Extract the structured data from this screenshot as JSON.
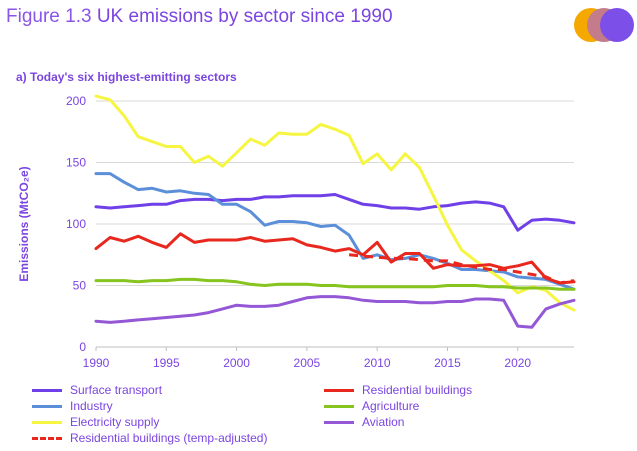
{
  "figure": {
    "label": "Figure 1.3",
    "title": "UK emissions by sector since 1990",
    "logo_colors": [
      "#f5a800",
      "#c47b8a",
      "#7b4fe8"
    ]
  },
  "panel": {
    "subtitle": "a) Today's six highest-emitting sectors"
  },
  "chart_data": {
    "type": "line",
    "title": "a) Today's six highest-emitting sectors",
    "xlabel": "",
    "ylabel": "Emissions (MtCO₂e)",
    "xlim": [
      1990,
      2024
    ],
    "ylim": [
      0,
      200
    ],
    "xticks": [
      1990,
      1995,
      2000,
      2005,
      2010,
      2015,
      2020
    ],
    "yticks": [
      0,
      50,
      100,
      150,
      200
    ],
    "grid": "horizontal",
    "x": [
      1990,
      1991,
      1992,
      1993,
      1994,
      1995,
      1996,
      1997,
      1998,
      1999,
      2000,
      2001,
      2002,
      2003,
      2004,
      2005,
      2006,
      2007,
      2008,
      2009,
      2010,
      2011,
      2012,
      2013,
      2014,
      2015,
      2016,
      2017,
      2018,
      2019,
      2020,
      2021,
      2022,
      2023,
      2024
    ],
    "series": [
      {
        "name": "Surface transport",
        "color": "#6f3fe8",
        "dashed": false,
        "values": [
          114,
          113,
          114,
          115,
          116,
          116,
          119,
          120,
          120,
          119,
          120,
          120,
          122,
          122,
          123,
          123,
          123,
          124,
          120,
          116,
          115,
          113,
          113,
          112,
          114,
          115,
          117,
          118,
          117,
          114,
          95,
          103,
          104,
          103,
          101
        ]
      },
      {
        "name": "Industry",
        "color": "#5b8fd9",
        "dashed": false,
        "values": [
          141,
          141,
          134,
          128,
          129,
          126,
          127,
          125,
          124,
          116,
          116,
          110,
          99,
          102,
          102,
          101,
          98,
          99,
          91,
          72,
          75,
          71,
          72,
          75,
          72,
          68,
          63,
          63,
          62,
          61,
          57,
          56,
          55,
          51,
          47
        ]
      },
      {
        "name": "Electricity supply",
        "color": "#f5f542",
        "dashed": false,
        "values": [
          204,
          201,
          188,
          171,
          167,
          163,
          163,
          150,
          155,
          147,
          158,
          169,
          164,
          174,
          173,
          173,
          181,
          177,
          172,
          149,
          157,
          144,
          157,
          146,
          123,
          99,
          79,
          70,
          62,
          54,
          44,
          49,
          46,
          36,
          30
        ]
      },
      {
        "name": "Residential buildings (temp-adjusted)",
        "color": "#e8281e",
        "dashed": true,
        "values": [
          null,
          null,
          null,
          null,
          null,
          null,
          null,
          null,
          null,
          null,
          null,
          null,
          null,
          null,
          null,
          null,
          null,
          null,
          75,
          74,
          73,
          72,
          72,
          71,
          70,
          70,
          67,
          65,
          63,
          63,
          61,
          59,
          57,
          52,
          54
        ]
      },
      {
        "name": "Residential buildings",
        "color": "#e8281e",
        "dashed": false,
        "values": [
          80,
          89,
          86,
          90,
          85,
          81,
          92,
          85,
          87,
          87,
          87,
          89,
          86,
          87,
          88,
          83,
          81,
          78,
          80,
          75,
          85,
          69,
          76,
          76,
          64,
          67,
          66,
          66,
          67,
          64,
          66,
          69,
          56,
          52,
          53
        ]
      },
      {
        "name": "Agriculture",
        "color": "#86c41e",
        "dashed": false,
        "values": [
          54,
          54,
          54,
          53,
          54,
          54,
          55,
          55,
          54,
          54,
          53,
          51,
          50,
          51,
          51,
          51,
          50,
          50,
          49,
          49,
          49,
          49,
          49,
          49,
          49,
          50,
          50,
          50,
          49,
          49,
          48,
          48,
          48,
          47,
          47
        ]
      },
      {
        "name": "Aviation",
        "color": "#9458d6",
        "dashed": false,
        "values": [
          21,
          20,
          21,
          22,
          23,
          24,
          25,
          26,
          28,
          31,
          34,
          33,
          33,
          34,
          37,
          40,
          41,
          41,
          40,
          38,
          37,
          37,
          37,
          36,
          36,
          37,
          37,
          39,
          39,
          38,
          17,
          16,
          31,
          35,
          38
        ]
      }
    ]
  },
  "legend": {
    "items": [
      {
        "label": "Surface transport",
        "color": "#6f3fe8",
        "dashed": false
      },
      {
        "label": "Residential buildings",
        "color": "#e8281e",
        "dashed": false
      },
      {
        "label": "Industry",
        "color": "#5b8fd9",
        "dashed": false
      },
      {
        "label": "Agriculture",
        "color": "#86c41e",
        "dashed": false
      },
      {
        "label": "Electricity supply",
        "color": "#f5f542",
        "dashed": false
      },
      {
        "label": "Aviation",
        "color": "#9458d6",
        "dashed": false
      },
      {
        "label": "Residential buildings (temp-adjusted)",
        "color": "#e8281e",
        "dashed": true
      }
    ]
  }
}
